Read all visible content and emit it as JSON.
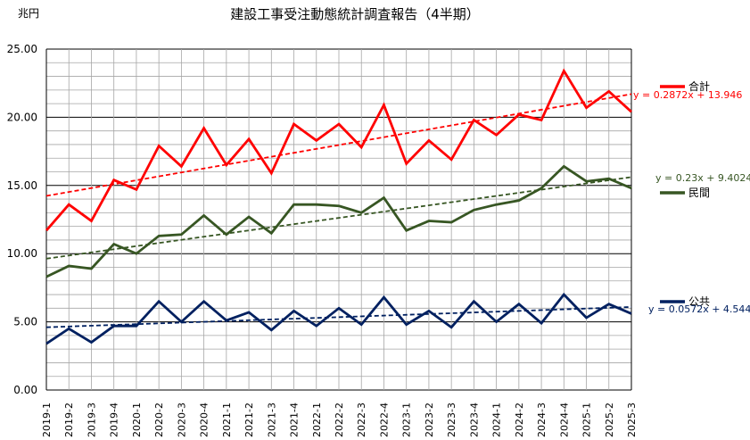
{
  "chart_data": {
    "type": "line",
    "title": "建設工事受注動態統計調査報告（4半期）",
    "unit_label": "兆円",
    "ylim": [
      0,
      25
    ],
    "y_ticks": [
      "0.00",
      "5.00",
      "10.00",
      "15.00",
      "20.00",
      "25.00"
    ],
    "grid": true,
    "legend_position": "right",
    "categories": [
      "2019-1",
      "2019-2",
      "2019-3",
      "2019-4",
      "2020-1",
      "2020-2",
      "2020-3",
      "2020-4",
      "2021-1",
      "2021-2",
      "2021-3",
      "2021-4",
      "2022-1",
      "2022-2",
      "2022-3",
      "2022-4",
      "2023-1",
      "2023-2",
      "2023-3",
      "2023-4",
      "2024-1",
      "2024-2",
      "2024-3",
      "2024-4",
      "2025-1",
      "2025-2",
      "2025-3"
    ],
    "series": [
      {
        "name": "合計",
        "color": "#ff0000",
        "values": [
          11.7,
          13.6,
          12.4,
          15.4,
          14.7,
          17.9,
          16.4,
          19.2,
          16.5,
          18.4,
          15.9,
          19.5,
          18.3,
          19.5,
          17.8,
          20.9,
          16.6,
          18.3,
          16.9,
          19.8,
          18.7,
          20.2,
          19.8,
          23.4,
          20.7,
          21.9,
          20.4
        ],
        "trend": {
          "slope": 0.2872,
          "intercept": 13.946,
          "label": "y = 0.2872x + 13.946"
        }
      },
      {
        "name": "民間",
        "color": "#375623",
        "values": [
          8.3,
          9.1,
          8.9,
          10.7,
          10.0,
          11.3,
          11.4,
          12.8,
          11.4,
          12.7,
          11.5,
          13.6,
          13.6,
          13.5,
          13.0,
          14.1,
          11.7,
          12.4,
          12.3,
          13.2,
          13.6,
          13.9,
          14.8,
          16.4,
          15.3,
          15.5,
          14.8
        ],
        "trend": {
          "slope": 0.23,
          "intercept": 9.4024,
          "label": "y = 0.23x + 9.4024"
        }
      },
      {
        "name": "公共",
        "color": "#002060",
        "values": [
          3.4,
          4.5,
          3.5,
          4.7,
          4.7,
          6.5,
          5.0,
          6.5,
          5.1,
          5.7,
          4.4,
          5.8,
          4.7,
          6.0,
          4.8,
          6.8,
          4.8,
          5.8,
          4.6,
          6.5,
          5.0,
          6.3,
          4.9,
          7.0,
          5.3,
          6.3,
          5.6
        ],
        "trend": {
          "slope": 0.0572,
          "intercept": 4.544,
          "label": "y = 0.0572x + 4.544"
        }
      }
    ]
  }
}
